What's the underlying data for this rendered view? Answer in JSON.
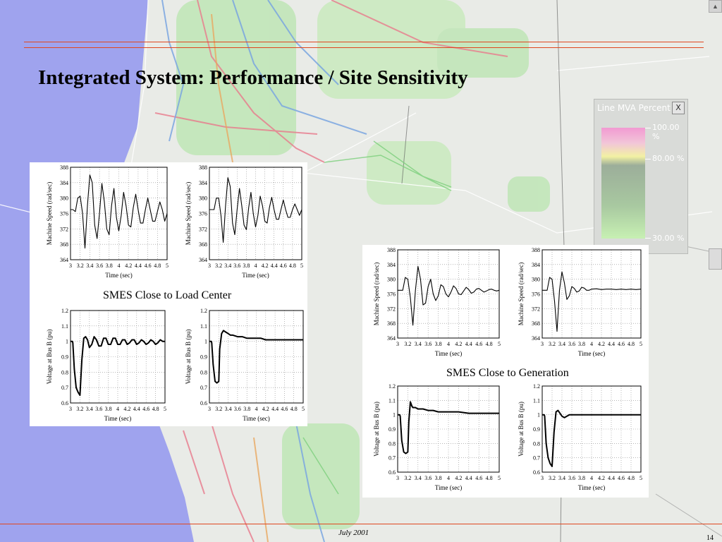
{
  "slide": {
    "title": "Integrated System: Performance / Site Sensitivity",
    "footer_date": "July 2001",
    "page_number": "14",
    "colors": {
      "rule": "#e0471f",
      "sea": "#9fa3ee",
      "land": "#e9ebe7",
      "trace": "#000000"
    }
  },
  "legend": {
    "title": "Line MVA Percent",
    "close_label": "X",
    "labels": [
      "100.00 %",
      "80.00 %",
      "30.00 %"
    ],
    "gradient_colors": [
      "#f29ad2",
      "#f2f1a3",
      "#9cae9a",
      "#c7f0b3"
    ]
  },
  "captions": {
    "load_center": "SMES Close to Load Center",
    "generation": "SMES Close to Generation"
  },
  "chart_data": [
    {
      "id": "load-speed-1",
      "group": "SMES Close to Load Center",
      "type": "line",
      "xlabel": "Time (sec)",
      "ylabel": "Machine Speed (rad/sec)",
      "xlim": [
        3,
        5
      ],
      "ylim": [
        364,
        388
      ],
      "yticks": [
        364,
        368,
        372,
        376,
        380,
        384,
        388
      ],
      "xticks": [
        "3",
        "3.2",
        "3.4",
        "3.6",
        "3.8",
        "4",
        "4.2",
        "4.4",
        "4.6",
        "4.8",
        "5"
      ],
      "grid": true,
      "x": [
        3.0,
        3.05,
        3.1,
        3.15,
        3.2,
        3.25,
        3.3,
        3.35,
        3.4,
        3.45,
        3.5,
        3.55,
        3.6,
        3.65,
        3.7,
        3.75,
        3.8,
        3.85,
        3.9,
        3.95,
        4.0,
        4.05,
        4.1,
        4.15,
        4.2,
        4.25,
        4.3,
        4.35,
        4.4,
        4.45,
        4.5,
        4.55,
        4.6,
        4.65,
        4.7,
        4.75,
        4.8,
        4.85,
        4.9,
        4.95,
        5.0
      ],
      "y": [
        377,
        377,
        376.5,
        380,
        380.5,
        376,
        367,
        378,
        386,
        384,
        373,
        369.5,
        376,
        383.8,
        379,
        372,
        370.5,
        378,
        382.5,
        375,
        371.5,
        375.5,
        381.5,
        378,
        373,
        372.5,
        377.5,
        381,
        377,
        373.5,
        373.5,
        377,
        380,
        377,
        374,
        374,
        376.5,
        379,
        377,
        374,
        376
      ]
    },
    {
      "id": "load-speed-2",
      "group": "SMES Close to Load Center",
      "type": "line",
      "xlabel": "Time (sec)",
      "ylabel": "Machine Speed (rad/sec)",
      "xlim": [
        3,
        5
      ],
      "ylim": [
        364,
        388
      ],
      "yticks": [
        364,
        368,
        372,
        376,
        380,
        384,
        388
      ],
      "xticks": [
        "3",
        "3.2",
        "3.4",
        "3.6",
        "3.8",
        "4",
        "4.2",
        "4.4",
        "4.6",
        "4.8",
        "5"
      ],
      "grid": true,
      "x": [
        3.0,
        3.05,
        3.1,
        3.15,
        3.2,
        3.25,
        3.3,
        3.35,
        3.4,
        3.45,
        3.5,
        3.55,
        3.6,
        3.65,
        3.7,
        3.75,
        3.8,
        3.85,
        3.9,
        3.95,
        4.0,
        4.05,
        4.1,
        4.15,
        4.2,
        4.25,
        4.3,
        4.35,
        4.4,
        4.45,
        4.5,
        4.55,
        4.6,
        4.65,
        4.7,
        4.75,
        4.8,
        4.85,
        4.9,
        4.95,
        5.0
      ],
      "y": [
        377,
        377,
        377,
        380,
        380,
        375.5,
        368.5,
        378,
        385.3,
        383,
        373.5,
        370.5,
        377,
        382.5,
        378,
        373,
        371.8,
        377.5,
        381.5,
        376,
        372.5,
        375.5,
        380.5,
        378,
        374,
        373.5,
        377.5,
        380.2,
        377,
        374.5,
        374.5,
        377,
        379.5,
        377,
        375,
        375,
        377,
        378.5,
        377,
        375.5,
        377
      ]
    },
    {
      "id": "load-voltage-1",
      "group": "SMES Close to Load Center",
      "type": "line",
      "xlabel": "Time (sec)",
      "ylabel": "Voltage at Bus B (pu)",
      "xlim": [
        3,
        5
      ],
      "ylim": [
        0.6,
        1.2
      ],
      "yticks": [
        0.6,
        0.7,
        0.8,
        0.9,
        1,
        1.1,
        1.2
      ],
      "xticks": [
        "3",
        "3.2",
        "3.4",
        "3.6",
        "3.8",
        "4",
        "4.2",
        "4.4",
        "4.6",
        "4.8",
        "5"
      ],
      "grid": true,
      "x": [
        3.0,
        3.04,
        3.05,
        3.08,
        3.12,
        3.16,
        3.2,
        3.24,
        3.28,
        3.32,
        3.36,
        3.4,
        3.45,
        3.5,
        3.55,
        3.6,
        3.65,
        3.7,
        3.75,
        3.8,
        3.85,
        3.9,
        3.95,
        4.0,
        4.05,
        4.1,
        4.15,
        4.2,
        4.25,
        4.3,
        4.35,
        4.4,
        4.45,
        4.5,
        4.55,
        4.6,
        4.65,
        4.7,
        4.75,
        4.8,
        4.85,
        4.9,
        4.95,
        5.0
      ],
      "y": [
        1.0,
        1.0,
        0.99,
        0.82,
        0.7,
        0.67,
        0.65,
        0.88,
        1.02,
        1.03,
        1.01,
        0.96,
        0.98,
        1.03,
        1.01,
        0.97,
        0.97,
        1.02,
        1.02,
        0.98,
        0.98,
        1.02,
        1.02,
        0.98,
        0.98,
        1.01,
        1.01,
        0.98,
        0.99,
        1.01,
        1.01,
        0.98,
        0.99,
        1.01,
        1.0,
        0.98,
        0.99,
        1.01,
        1.0,
        0.98,
        0.99,
        1.01,
        1.0,
        1.0
      ]
    },
    {
      "id": "load-voltage-2",
      "group": "SMES Close to Load Center",
      "type": "line",
      "xlabel": "Time (sec)",
      "ylabel": "Voltage at Bus B (pu)",
      "xlim": [
        3,
        5
      ],
      "ylim": [
        0.6,
        1.2
      ],
      "yticks": [
        0.6,
        0.7,
        0.8,
        0.9,
        1,
        1.1,
        1.2
      ],
      "xticks": [
        "3",
        "3.2",
        "3.4",
        "3.6",
        "3.8",
        "4",
        "4.2",
        "4.4",
        "4.6",
        "4.8",
        "5"
      ],
      "grid": true,
      "x": [
        3.0,
        3.04,
        3.05,
        3.08,
        3.12,
        3.16,
        3.2,
        3.22,
        3.26,
        3.3,
        3.35,
        3.4,
        3.45,
        3.5,
        3.6,
        3.7,
        3.8,
        3.9,
        4.0,
        4.1,
        4.2,
        4.3,
        4.4,
        4.5,
        4.6,
        4.7,
        4.8,
        4.9,
        5.0
      ],
      "y": [
        1.0,
        1.0,
        0.99,
        0.85,
        0.74,
        0.73,
        0.74,
        0.95,
        1.05,
        1.07,
        1.06,
        1.05,
        1.04,
        1.04,
        1.03,
        1.03,
        1.02,
        1.02,
        1.02,
        1.02,
        1.01,
        1.01,
        1.01,
        1.01,
        1.01,
        1.01,
        1.01,
        1.01,
        1.01
      ]
    },
    {
      "id": "gen-speed-1",
      "group": "SMES Close to Generation",
      "type": "line",
      "xlabel": "Time (sec)",
      "ylabel": "Machine Speed (rad/sec)",
      "xlim": [
        3,
        5
      ],
      "ylim": [
        364,
        388
      ],
      "yticks": [
        364,
        368,
        372,
        376,
        380,
        384,
        388
      ],
      "xticks": [
        "3",
        "3.2",
        "3.4",
        "3.6",
        "3.8",
        "4",
        "4.2",
        "4.4",
        "4.6",
        "4.8",
        "5"
      ],
      "grid": true,
      "x": [
        3.0,
        3.05,
        3.1,
        3.15,
        3.2,
        3.25,
        3.3,
        3.35,
        3.4,
        3.45,
        3.5,
        3.55,
        3.6,
        3.65,
        3.7,
        3.75,
        3.8,
        3.85,
        3.9,
        3.95,
        4.0,
        4.05,
        4.1,
        4.15,
        4.2,
        4.25,
        4.3,
        4.35,
        4.4,
        4.45,
        4.5,
        4.55,
        4.6,
        4.65,
        4.7,
        4.75,
        4.8,
        4.85,
        4.9,
        4.95,
        5.0
      ],
      "y": [
        377,
        377,
        377,
        380.5,
        380,
        375,
        367.5,
        377,
        383.5,
        380,
        373,
        373.5,
        378,
        380,
        376,
        374.2,
        375.5,
        378.5,
        378,
        376,
        375.2,
        376.5,
        378.2,
        377.5,
        376,
        375.8,
        376.8,
        377.8,
        377.2,
        376.2,
        376.5,
        377.3,
        377.5,
        377,
        376.5,
        376.8,
        377.2,
        377.3,
        377,
        376.8,
        377
      ]
    },
    {
      "id": "gen-speed-2",
      "group": "SMES Close to Generation",
      "type": "line",
      "xlabel": "Time (sec)",
      "ylabel": "Machine Speed (rad/sec)",
      "xlim": [
        3,
        5
      ],
      "ylim": [
        364,
        388
      ],
      "yticks": [
        364,
        368,
        372,
        376,
        380,
        384,
        388
      ],
      "xticks": [
        "3",
        "3.2",
        "3.4",
        "3.6",
        "3.8",
        "4",
        "4.2",
        "4.4",
        "4.6",
        "4.8",
        "5"
      ],
      "grid": true,
      "x": [
        3.0,
        3.05,
        3.1,
        3.15,
        3.2,
        3.25,
        3.3,
        3.35,
        3.4,
        3.45,
        3.5,
        3.55,
        3.6,
        3.65,
        3.7,
        3.75,
        3.8,
        3.85,
        3.9,
        3.95,
        4.0,
        4.1,
        4.2,
        4.3,
        4.4,
        4.5,
        4.6,
        4.7,
        4.8,
        4.9,
        5.0
      ],
      "y": [
        377,
        377,
        377,
        380.5,
        380,
        374,
        365.8,
        377,
        382,
        379,
        374.5,
        375.5,
        378,
        377.5,
        376.5,
        376.8,
        377.8,
        377.6,
        377,
        377,
        377.3,
        377.4,
        377.2,
        377.3,
        377.3,
        377.2,
        377.3,
        377.2,
        377.3,
        377.2,
        377.3
      ]
    },
    {
      "id": "gen-voltage-1",
      "group": "SMES Close to Generation",
      "type": "line",
      "xlabel": "Time (sec)",
      "ylabel": "Voltage at Bus B (pu)",
      "xlim": [
        3,
        5
      ],
      "ylim": [
        0.6,
        1.2
      ],
      "yticks": [
        0.6,
        0.7,
        0.8,
        0.9,
        1,
        1.1,
        1.2
      ],
      "xticks": [
        "3",
        "3.2",
        "3.4",
        "3.6",
        "3.8",
        "4",
        "4.2",
        "4.4",
        "4.6",
        "4.8",
        "5"
      ],
      "grid": true,
      "x": [
        3.0,
        3.04,
        3.05,
        3.08,
        3.12,
        3.16,
        3.2,
        3.22,
        3.25,
        3.28,
        3.3,
        3.35,
        3.4,
        3.5,
        3.6,
        3.7,
        3.8,
        3.9,
        4.0,
        4.2,
        4.4,
        4.6,
        4.8,
        5.0
      ],
      "y": [
        1.0,
        1.0,
        0.99,
        0.82,
        0.74,
        0.73,
        0.74,
        0.95,
        1.09,
        1.06,
        1.05,
        1.05,
        1.04,
        1.04,
        1.03,
        1.03,
        1.02,
        1.02,
        1.02,
        1.02,
        1.01,
        1.01,
        1.01,
        1.01
      ]
    },
    {
      "id": "gen-voltage-2",
      "group": "SMES Close to Generation",
      "type": "line",
      "xlabel": "Time (sec)",
      "ylabel": "Voltage at Bus B (pu)",
      "xlim": [
        3,
        5
      ],
      "ylim": [
        0.6,
        1.2
      ],
      "yticks": [
        0.6,
        0.7,
        0.8,
        0.9,
        1,
        1.1,
        1.2
      ],
      "xticks": [
        "3",
        "3.2",
        "3.4",
        "3.6",
        "3.8",
        "4",
        "4.2",
        "4.4",
        "4.6",
        "4.8",
        "5"
      ],
      "grid": true,
      "x": [
        3.0,
        3.04,
        3.05,
        3.08,
        3.12,
        3.16,
        3.2,
        3.24,
        3.28,
        3.32,
        3.36,
        3.4,
        3.45,
        3.5,
        3.55,
        3.6,
        3.7,
        3.8,
        3.9,
        4.0,
        4.2,
        4.4,
        4.6,
        4.8,
        5.0
      ],
      "y": [
        1.0,
        1.0,
        0.99,
        0.8,
        0.7,
        0.66,
        0.64,
        0.88,
        1.02,
        1.03,
        1.01,
        0.99,
        0.98,
        0.99,
        1.0,
        1.0,
        1.0,
        1.0,
        1.0,
        1.0,
        1.0,
        1.0,
        1.0,
        1.0,
        1.0
      ]
    }
  ]
}
